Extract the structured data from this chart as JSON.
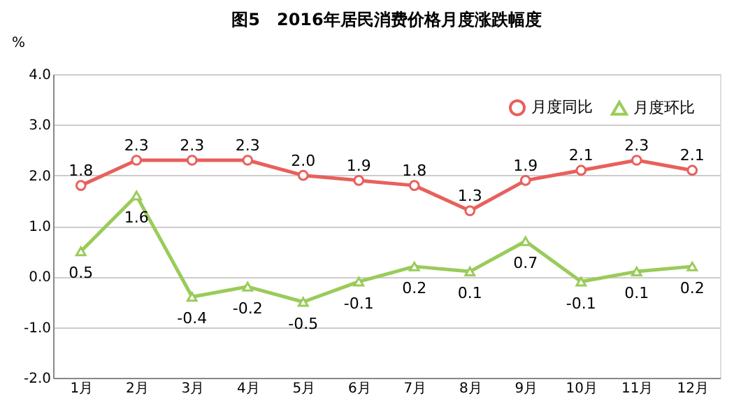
{
  "chart_data": {
    "type": "line",
    "title": "图5　2016年居民消费价格月度涨跌幅度",
    "ylabel": "%",
    "categories": [
      "1月",
      "2月",
      "3月",
      "4月",
      "5月",
      "6月",
      "7月",
      "8月",
      "9月",
      "10月",
      "11月",
      "12月"
    ],
    "series": [
      {
        "name": "月度同比",
        "color": "#e8605c",
        "marker": "circle",
        "values": [
          1.8,
          2.3,
          2.3,
          2.3,
          2.0,
          1.9,
          1.8,
          1.3,
          1.9,
          2.1,
          2.3,
          2.1
        ],
        "value_labels": [
          "1.8",
          "2.3",
          "2.3",
          "2.3",
          "2.0",
          "1.9",
          "1.8",
          "1.3",
          "1.9",
          "2.1",
          "2.3",
          "2.1"
        ]
      },
      {
        "name": "月度环比",
        "color": "#9acb5a",
        "marker": "triangle",
        "values": [
          0.5,
          1.6,
          -0.4,
          -0.2,
          -0.5,
          -0.1,
          0.2,
          0.1,
          0.7,
          -0.1,
          0.1,
          0.2
        ],
        "value_labels": [
          "0.5",
          "1.6",
          "-0.4",
          "-0.2",
          "-0.5",
          "-0.1",
          "0.2",
          "0.1",
          "0.7",
          "-0.1",
          "0.1",
          "0.2"
        ]
      }
    ],
    "ylim": [
      -2.0,
      4.0
    ],
    "yticks": [
      {
        "value": -2,
        "label": "-2.0"
      },
      {
        "value": -1,
        "label": "-1.0"
      },
      {
        "value": 0,
        "label": "0.0"
      },
      {
        "value": 1,
        "label": "1.0"
      },
      {
        "value": 2,
        "label": "2.0"
      },
      {
        "value": 3,
        "label": "3.0"
      },
      {
        "value": 4,
        "label": "4.0"
      }
    ],
    "grid": "y",
    "legend": "top right",
    "line_style": "solid"
  }
}
